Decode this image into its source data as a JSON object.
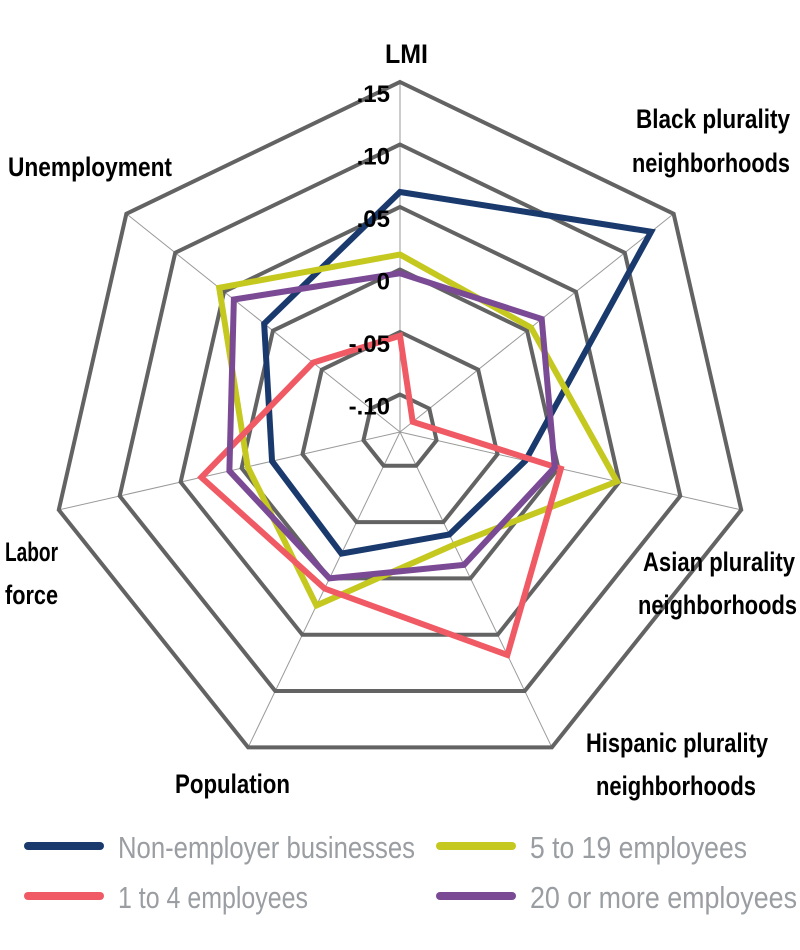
{
  "chart_data": {
    "type": "radar",
    "axes": [
      "LMI",
      "Black plurality neighborhoods",
      "Asian plurality neighborhoods",
      "Hispanic plurality neighborhoods",
      "Population",
      "Labor force",
      "Unemployment"
    ],
    "axis_labels": [
      [
        "LMI"
      ],
      [
        "Black plurality",
        "neighborhoods"
      ],
      [
        "Asian plurality",
        "neighborhoods"
      ],
      [
        "Hispanic plurality",
        "neighborhoods"
      ],
      [
        "Population"
      ],
      [
        "Labor",
        "force"
      ],
      [
        "Unemployment"
      ]
    ],
    "ticks": [
      -0.1,
      -0.05,
      0,
      0.05,
      0.1,
      0.15
    ],
    "tick_labels": [
      "-.10",
      "-.05",
      "0",
      ".05",
      ".10",
      ".15"
    ],
    "range": [
      -0.13,
      0.15
    ],
    "grid": true,
    "legend_position": "bottom",
    "series": [
      {
        "name": "Non-employer businesses",
        "color": "#1a3a6e",
        "values": [
          0.062,
          0.127,
          -0.027,
          -0.039,
          -0.022,
          -0.025,
          0.009
        ]
      },
      {
        "name": "5 to 19 employees",
        "color": "#c5c81e",
        "values": [
          0.012,
          0.004,
          0.048,
          -0.03,
          0.024,
          -0.005,
          0.055
        ]
      },
      {
        "name": "1 to 4 employees",
        "color": "#f05a64",
        "values": [
          -0.053,
          -0.117,
          0.002,
          0.068,
          0.009,
          0.033,
          -0.041
        ]
      },
      {
        "name": "20 or more employees",
        "color": "#7b4a94",
        "values": [
          -0.003,
          0.015,
          -0.003,
          -0.012,
          0.0,
          0.01,
          0.04
        ]
      }
    ]
  }
}
